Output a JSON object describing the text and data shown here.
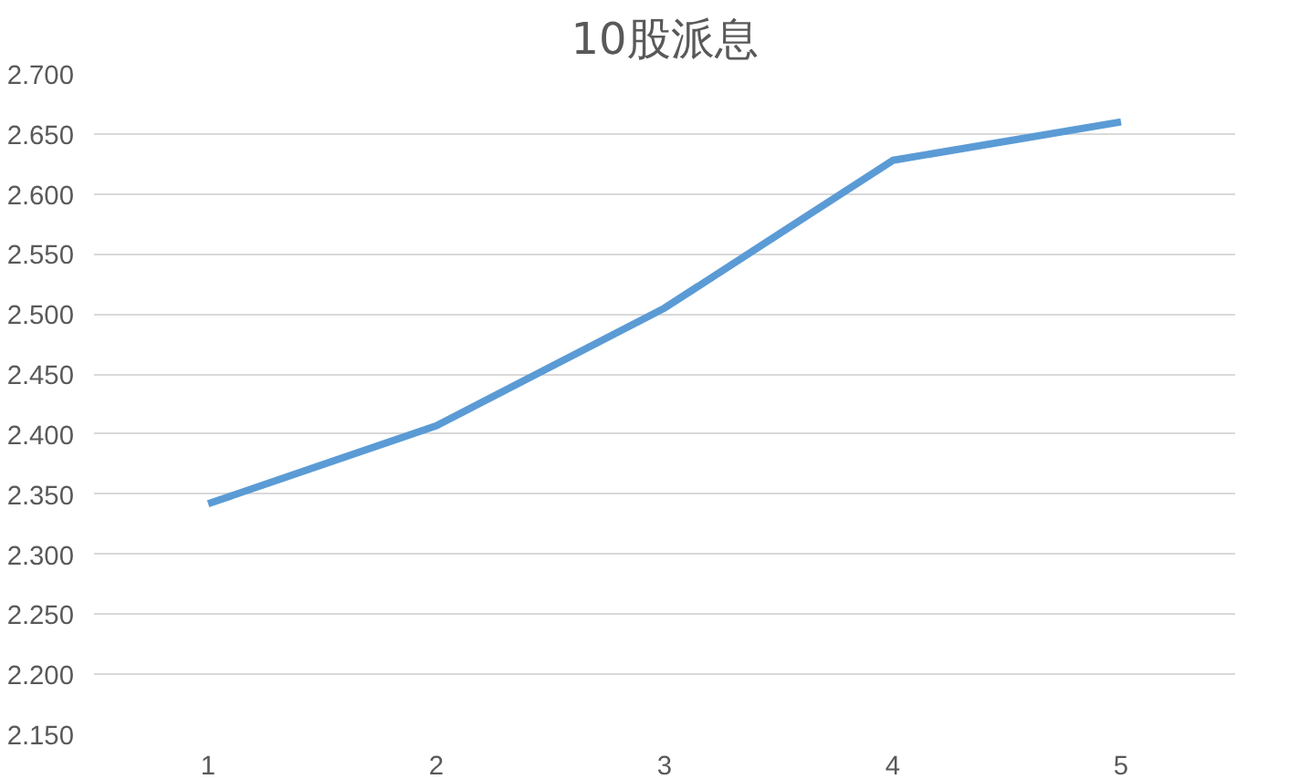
{
  "chart_data": {
    "type": "line",
    "title": "10股派息",
    "categories": [
      "1",
      "2",
      "3",
      "4",
      "5"
    ],
    "series": [
      {
        "color": "#5b9bd5",
        "values": [
          2.342,
          2.407,
          2.505,
          2.628,
          2.66
        ]
      }
    ],
    "ylim": [
      2.15,
      2.7
    ],
    "yticks": [
      {
        "value": 2.15,
        "label": "2.150"
      },
      {
        "value": 2.2,
        "label": "2.200"
      },
      {
        "value": 2.25,
        "label": "2.250"
      },
      {
        "value": 2.3,
        "label": "2.300"
      },
      {
        "value": 2.35,
        "label": "2.350"
      },
      {
        "value": 2.4,
        "label": "2.400"
      },
      {
        "value": 2.45,
        "label": "2.450"
      },
      {
        "value": 2.5,
        "label": "2.500"
      },
      {
        "value": 2.55,
        "label": "2.550"
      },
      {
        "value": 2.6,
        "label": "2.600"
      },
      {
        "value": 2.65,
        "label": "2.650"
      },
      {
        "value": 2.7,
        "label": "2.700"
      }
    ],
    "grid": "y",
    "marker": "none",
    "line_style": "solid"
  }
}
